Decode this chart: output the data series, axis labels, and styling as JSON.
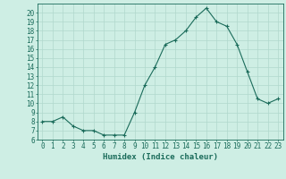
{
  "x": [
    0,
    1,
    2,
    3,
    4,
    5,
    6,
    7,
    8,
    9,
    10,
    11,
    12,
    13,
    14,
    15,
    16,
    17,
    18,
    19,
    20,
    21,
    22,
    23
  ],
  "y": [
    8,
    8,
    8.5,
    7.5,
    7,
    7,
    6.5,
    6.5,
    6.5,
    9,
    12,
    14,
    16.5,
    17,
    18,
    19.5,
    20.5,
    19,
    18.5,
    16.5,
    13.5,
    10.5,
    10,
    10.5
  ],
  "line_color": "#1a6b5a",
  "marker": "+",
  "marker_size": 3,
  "bg_color": "#ceeee4",
  "grid_color": "#b0d8cc",
  "xlabel": "Humidex (Indice chaleur)",
  "ylim": [
    6,
    21
  ],
  "xlim": [
    -0.5,
    23.5
  ],
  "yticks": [
    6,
    7,
    8,
    9,
    10,
    11,
    12,
    13,
    14,
    15,
    16,
    17,
    18,
    19,
    20
  ],
  "xticks": [
    0,
    1,
    2,
    3,
    4,
    5,
    6,
    7,
    8,
    9,
    10,
    11,
    12,
    13,
    14,
    15,
    16,
    17,
    18,
    19,
    20,
    21,
    22,
    23
  ],
  "tick_fontsize": 5.5,
  "label_fontsize": 6.5
}
